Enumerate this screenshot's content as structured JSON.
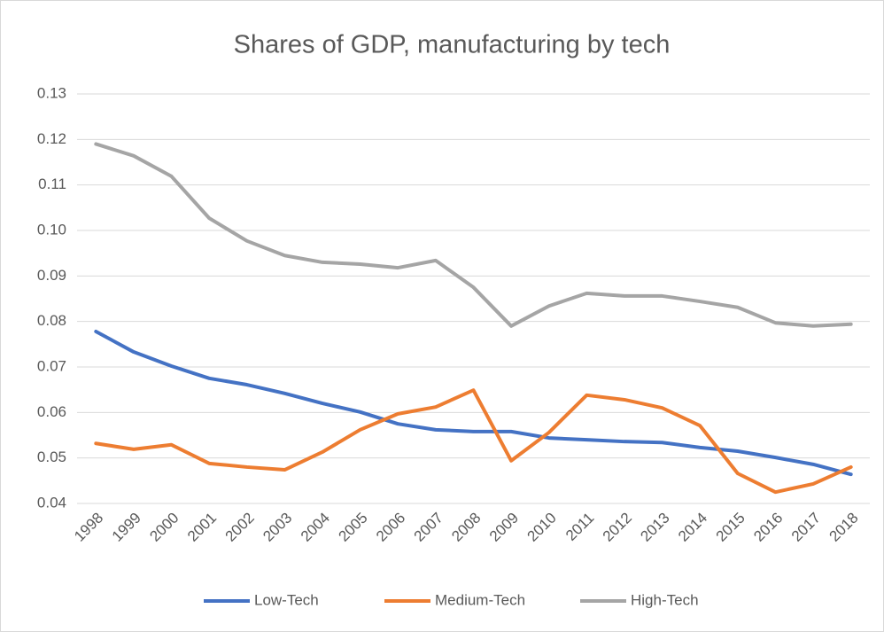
{
  "chart_data": {
    "type": "line",
    "title": "Shares of GDP, manufacturing by tech",
    "categories": [
      "1998",
      "1999",
      "2000",
      "2001",
      "2002",
      "2003",
      "2004",
      "2005",
      "2006",
      "2007",
      "2008",
      "2009",
      "2010",
      "2011",
      "2012",
      "2013",
      "2014",
      "2015",
      "2016",
      "2017",
      "2018"
    ],
    "series": [
      {
        "name": "Low-Tech",
        "color": "#4472c4",
        "values": [
          0.0778,
          0.0733,
          0.0702,
          0.0675,
          0.0661,
          0.0642,
          0.062,
          0.0601,
          0.0575,
          0.0562,
          0.0558,
          0.0558,
          0.0544,
          0.054,
          0.0536,
          0.0534,
          0.0523,
          0.0515,
          0.0501,
          0.0486,
          0.0464
        ]
      },
      {
        "name": "Medium-Tech",
        "color": "#ed7d31",
        "values": [
          0.0532,
          0.0519,
          0.0529,
          0.0488,
          0.048,
          0.0474,
          0.0513,
          0.0562,
          0.0597,
          0.0612,
          0.0649,
          0.0494,
          0.0556,
          0.0638,
          0.0628,
          0.061,
          0.0571,
          0.0466,
          0.0425,
          0.0443,
          0.048
        ]
      },
      {
        "name": "High-Tech",
        "color": "#a5a5a5",
        "values": [
          0.119,
          0.1164,
          0.1119,
          0.1027,
          0.0977,
          0.0945,
          0.093,
          0.0926,
          0.0918,
          0.0934,
          0.0875,
          0.079,
          0.0834,
          0.0862,
          0.0856,
          0.0856,
          0.0844,
          0.0831,
          0.0797,
          0.079,
          0.0794
        ]
      }
    ],
    "ylim": [
      0.04,
      0.13
    ],
    "yticks": [
      0.04,
      0.05,
      0.06,
      0.07,
      0.08,
      0.09,
      {
        "value": 0.1,
        "label": "0.10"
      },
      0.11,
      0.12,
      0.13
    ],
    "grid": true,
    "legend": "bottom"
  }
}
